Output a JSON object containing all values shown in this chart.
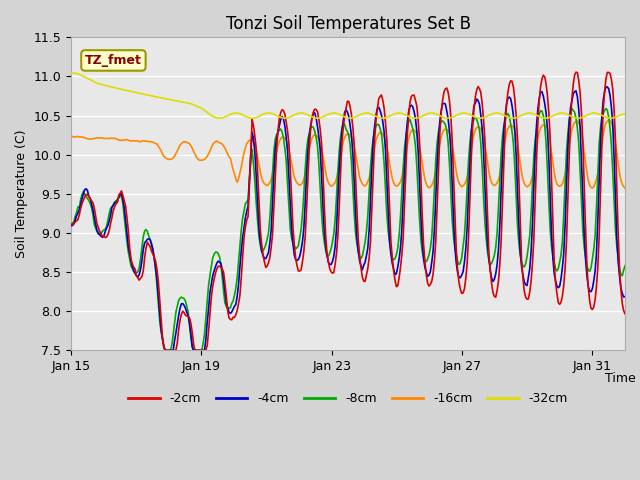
{
  "title": "Tonzi Soil Temperatures Set B",
  "xlabel": "Time",
  "ylabel": "Soil Temperature (C)",
  "annotation_text": "TZ_fmet",
  "annotation_bg": "#ffffcc",
  "annotation_border": "#999900",
  "annotation_text_color": "#880000",
  "ylim": [
    7.5,
    11.5
  ],
  "yticks": [
    7.5,
    8.0,
    8.5,
    9.0,
    9.5,
    10.0,
    10.5,
    11.0,
    11.5
  ],
  "xtick_labels": [
    "Jan 15",
    "Jan 19",
    "Jan 23",
    "Jan 27",
    "Jan 31"
  ],
  "xtick_positions": [
    0,
    4,
    8,
    12,
    16
  ],
  "xlim": [
    0,
    17
  ],
  "fig_bg": "#d4d4d4",
  "plot_bg": "#e8e8e8",
  "grid_color": "#ffffff",
  "series": [
    {
      "label": "-2cm",
      "color": "#dd0000",
      "lw": 1.2
    },
    {
      "label": "-4cm",
      "color": "#0000cc",
      "lw": 1.2
    },
    {
      "label": "-8cm",
      "color": "#00aa00",
      "lw": 1.2
    },
    {
      "label": "-16cm",
      "color": "#ff8800",
      "lw": 1.2
    },
    {
      "label": "-32cm",
      "color": "#dddd00",
      "lw": 1.2
    }
  ]
}
